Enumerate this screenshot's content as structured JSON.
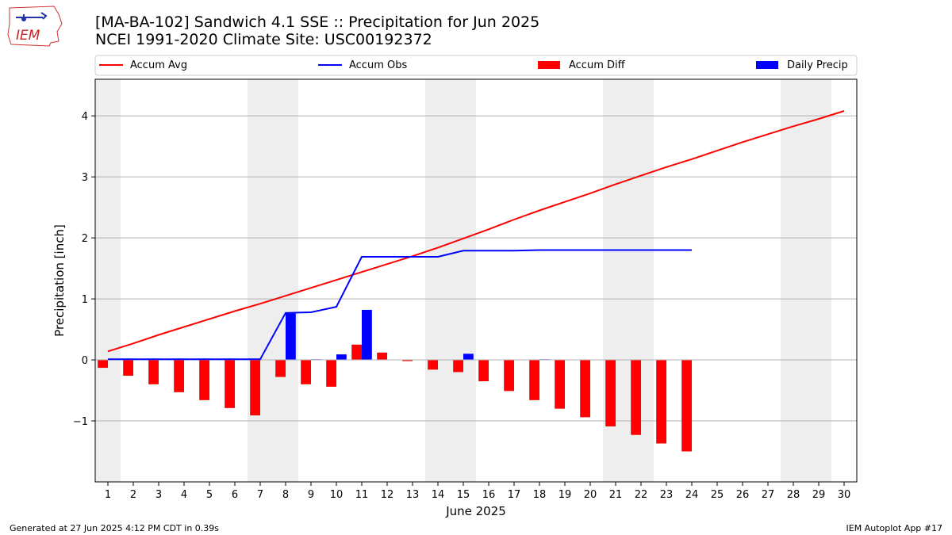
{
  "header": {
    "title_line1": "[MA-BA-102] Sandwich 4.1 SSE :: Precipitation for Jun 2025",
    "title_line2": "NCEI 1991-2020 Climate Site: USC00192372",
    "logo_text": "IEM"
  },
  "footer": {
    "generated": "Generated at 27 Jun 2025 4:12 PM CDT in 0.39s",
    "app": "IEM Autoplot App #17"
  },
  "legend": {
    "accum_avg": "Accum Avg",
    "accum_obs": "Accum Obs",
    "accum_diff": "Accum Diff",
    "daily_precip": "Daily Precip"
  },
  "colors": {
    "accum_avg": "#ff0000",
    "accum_obs": "#0000ff",
    "accum_diff": "#ff0000",
    "daily_precip": "#0000ff",
    "weekend_shade": "#eeeeee",
    "grid": "#b0b0b0"
  },
  "chart_data": {
    "type": "bar",
    "xlabel": "June 2025",
    "ylabel": "Precipitation [inch]",
    "x": [
      1,
      2,
      3,
      4,
      5,
      6,
      7,
      8,
      9,
      10,
      11,
      12,
      13,
      14,
      15,
      16,
      17,
      18,
      19,
      20,
      21,
      22,
      23,
      24,
      25,
      26,
      27,
      28,
      29,
      30
    ],
    "xlim": [
      0.5,
      30.5
    ],
    "ylim": [
      -2.0,
      4.6
    ],
    "yticks": [
      -1,
      0,
      1,
      2,
      3,
      4
    ],
    "ytick_labels": [
      "−1",
      "0",
      "1",
      "2",
      "3",
      "4"
    ],
    "grid": "horizontal",
    "legend_position": "top",
    "weekend_days": [
      1,
      7,
      8,
      14,
      15,
      21,
      22,
      28,
      29
    ],
    "series": [
      {
        "name": "Accum Avg",
        "kind": "line",
        "values": [
          0.14,
          0.27,
          0.41,
          0.54,
          0.67,
          0.8,
          0.92,
          1.05,
          1.18,
          1.31,
          1.44,
          1.57,
          1.7,
          1.84,
          1.99,
          2.14,
          2.3,
          2.45,
          2.59,
          2.73,
          2.88,
          3.02,
          3.16,
          3.29,
          3.43,
          3.57,
          3.7,
          3.83,
          3.95,
          4.08
        ]
      },
      {
        "name": "Accum Obs",
        "kind": "line",
        "values": [
          0.01,
          0.01,
          0.01,
          0.01,
          0.01,
          0.01,
          0.01,
          0.77,
          0.78,
          0.87,
          1.69,
          1.69,
          1.69,
          1.69,
          1.79,
          1.79,
          1.79,
          1.8,
          1.8,
          1.8,
          1.8,
          1.8,
          1.8,
          1.8,
          null,
          null,
          null,
          null,
          null,
          null
        ]
      },
      {
        "name": "Accum Diff",
        "kind": "bar",
        "values": [
          -0.13,
          -0.26,
          -0.4,
          -0.53,
          -0.66,
          -0.79,
          -0.91,
          -0.28,
          -0.4,
          -0.44,
          0.25,
          0.12,
          -0.02,
          -0.16,
          -0.2,
          -0.35,
          -0.51,
          -0.66,
          -0.8,
          -0.94,
          -1.09,
          -1.23,
          -1.37,
          -1.5,
          null,
          null,
          null,
          null,
          null,
          null
        ]
      },
      {
        "name": "Daily Precip",
        "kind": "bar",
        "values": [
          0,
          0,
          0,
          0,
          0,
          0,
          0,
          0.76,
          0.01,
          0.09,
          0.82,
          0,
          0,
          0,
          0.1,
          0,
          0,
          0.01,
          0,
          0,
          0,
          0,
          0,
          0,
          null,
          null,
          null,
          null,
          null,
          null
        ]
      }
    ]
  }
}
